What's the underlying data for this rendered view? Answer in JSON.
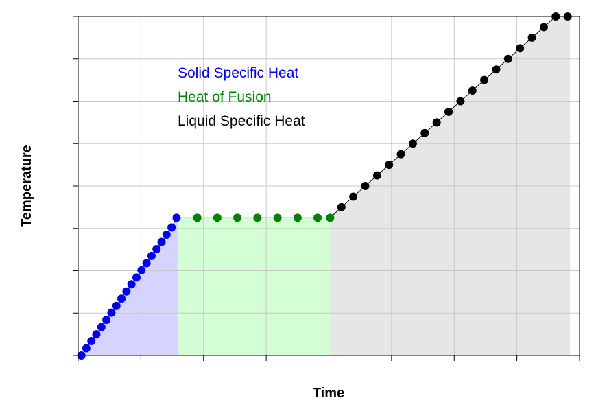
{
  "chart_data": {
    "type": "line",
    "title": "",
    "xlabel": "Time",
    "ylabel": "Temperature",
    "xlim": [
      0,
      8
    ],
    "ylim": [
      0,
      8
    ],
    "x_ticks": [
      0,
      1,
      2,
      3,
      4,
      5,
      6,
      7,
      8
    ],
    "y_ticks": [
      0,
      1,
      2,
      3,
      4,
      5,
      6,
      7,
      8
    ],
    "tick_labels_shown": false,
    "grid": true,
    "legend_position": "top-left",
    "series": [
      {
        "name": "Solid Specific Heat",
        "color": "#0000ee",
        "fill": "#d4d4ff",
        "x": [
          0.05,
          0.13,
          0.21,
          0.29,
          0.37,
          0.45,
          0.53,
          0.61,
          0.69,
          0.77,
          0.85,
          0.93,
          1.01,
          1.09,
          1.17,
          1.25,
          1.33,
          1.41,
          1.49,
          1.57
        ],
        "y": [
          0.0,
          0.17,
          0.34,
          0.5,
          0.67,
          0.84,
          1.01,
          1.17,
          1.34,
          1.51,
          1.68,
          1.84,
          2.01,
          2.18,
          2.35,
          2.51,
          2.68,
          2.85,
          3.02,
          3.25
        ]
      },
      {
        "name": "Heat of Fusion",
        "color": "#008000",
        "fill": "#d4ffd4",
        "x": [
          1.9,
          2.22,
          2.54,
          2.86,
          3.18,
          3.5,
          3.82,
          4.02
        ],
        "y": [
          3.25,
          3.25,
          3.25,
          3.25,
          3.25,
          3.25,
          3.25,
          3.25
        ]
      },
      {
        "name": "Liquid Specific Heat",
        "color": "#000000",
        "fill": "#e6e6e6",
        "x": [
          4.2,
          4.39,
          4.58,
          4.77,
          4.96,
          5.15,
          5.34,
          5.53,
          5.72,
          5.91,
          6.1,
          6.29,
          6.48,
          6.67,
          6.86,
          7.05,
          7.24,
          7.43,
          7.62,
          7.81
        ],
        "y": [
          3.5,
          3.75,
          4.0,
          4.25,
          4.5,
          4.75,
          5.0,
          5.25,
          5.5,
          5.75,
          6.0,
          6.25,
          6.5,
          6.75,
          7.0,
          7.25,
          7.5,
          7.75,
          8.0,
          8.0
        ]
      }
    ],
    "regions": [
      {
        "label": "Solid Specific Heat",
        "x_start": 0.05,
        "x_end": 1.6,
        "color": "#d4d4ff"
      },
      {
        "label": "Heat of Fusion",
        "x_start": 1.6,
        "x_end": 4.02,
        "color": "#d4ffd4"
      },
      {
        "label": "Liquid Specific Heat",
        "x_start": 4.02,
        "x_end": 7.85,
        "color": "#e6e6e6"
      }
    ]
  }
}
